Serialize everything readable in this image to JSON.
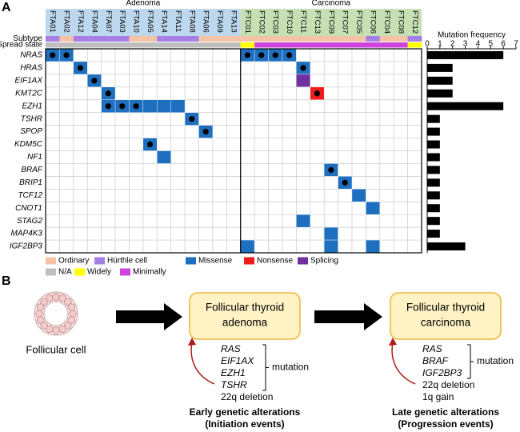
{
  "panel_labels": [
    "A",
    "B"
  ],
  "chart_data": [
    {
      "type": "oncoprint",
      "groups": [
        {
          "name": "Adenoma",
          "color": "#bdd7ee",
          "samples": [
            "FTA01",
            "FTA02",
            "FTA12",
            "FTA04",
            "FTA07",
            "FTA03",
            "FTA10",
            "FTA05",
            "FTA14",
            "FTA11",
            "FTA08",
            "FTA06",
            "FTA09",
            "FTA13"
          ]
        },
        {
          "name": "Carcinoma",
          "color": "#c6e0b4",
          "samples": [
            "FTC01",
            "FTC02",
            "FTC03",
            "FTC10",
            "FTC11",
            "FTC13",
            "FTC09",
            "FTC07",
            "FTC05",
            "FTC06",
            "FTC04",
            "FTC08",
            "FTC12"
          ]
        }
      ],
      "genes": [
        "NRAS",
        "HRAS",
        "EIF1AX",
        "KMT2C",
        "EZH1",
        "TSHR",
        "SPOP",
        "KDM5C",
        "NF1",
        "BRAF",
        "BRIP1",
        "TCF12",
        "CNOT1",
        "STAG2",
        "MAP4K3",
        "IGF2BP3"
      ],
      "annotation_rows": [
        "Subtype",
        "Spread state"
      ],
      "subtype": [
        "Hürthle cell",
        "Ordinary",
        "Hürthle cell",
        "Hürthle cell",
        "Hürthle cell",
        "Hürthle cell",
        "Ordinary",
        "Ordinary",
        "Hürthle cell",
        "Hürthle cell",
        "Hürthle cell",
        "Ordinary",
        "Ordinary",
        "Ordinary",
        "Ordinary",
        "Ordinary",
        "Ordinary",
        "Ordinary",
        "Ordinary",
        "Ordinary",
        "Ordinary",
        "Ordinary",
        "Ordinary",
        "Hürthle cell",
        "Ordinary",
        "Ordinary",
        "Hürthle cell"
      ],
      "spread_state": [
        "N/A",
        "N/A",
        "N/A",
        "N/A",
        "N/A",
        "N/A",
        "N/A",
        "N/A",
        "N/A",
        "N/A",
        "N/A",
        "N/A",
        "N/A",
        "N/A",
        "Widely",
        "Minimally",
        "Minimally",
        "Minimally",
        "Minimally",
        "Minimally",
        "Minimally",
        "Minimally",
        "Minimally",
        "Minimally",
        "Minimally",
        "Minimally",
        "Widely"
      ],
      "subtype_legend": [
        {
          "name": "Ordinary",
          "color": "#f4c3a6"
        },
        {
          "name": "Hürthle cell",
          "color": "#a57fe6"
        }
      ],
      "spread_legend": [
        {
          "name": "N/A",
          "color": "#bfbfbf"
        },
        {
          "name": "Widely",
          "color": "#ffff00"
        },
        {
          "name": "Minimally",
          "color": "#cc44dd"
        }
      ],
      "mutation_legend": [
        {
          "name": "Missense",
          "color": "#1f6fc0"
        },
        {
          "name": "Nonsense",
          "color": "#ee1c1c"
        },
        {
          "name": "Splicing",
          "color": "#7030a0"
        }
      ],
      "mutations": [
        {
          "gene": "NRAS",
          "sample": "FTA01",
          "type": "Missense",
          "dot": true
        },
        {
          "gene": "NRAS",
          "sample": "FTA02",
          "type": "Missense",
          "dot": true
        },
        {
          "gene": "NRAS",
          "sample": "FTC01",
          "type": "Missense",
          "dot": true
        },
        {
          "gene": "NRAS",
          "sample": "FTC02",
          "type": "Missense",
          "dot": true
        },
        {
          "gene": "NRAS",
          "sample": "FTC03",
          "type": "Missense",
          "dot": true
        },
        {
          "gene": "NRAS",
          "sample": "FTC10",
          "type": "Missense",
          "dot": true
        },
        {
          "gene": "HRAS",
          "sample": "FTA12",
          "type": "Missense",
          "dot": true
        },
        {
          "gene": "HRAS",
          "sample": "FTC11",
          "type": "Missense",
          "dot": true
        },
        {
          "gene": "EIF1AX",
          "sample": "FTA04",
          "type": "Missense",
          "dot": true
        },
        {
          "gene": "EIF1AX",
          "sample": "FTC11",
          "type": "Splicing",
          "dot": false
        },
        {
          "gene": "KMT2C",
          "sample": "FTA07",
          "type": "Missense",
          "dot": true
        },
        {
          "gene": "KMT2C",
          "sample": "FTC13",
          "type": "Nonsense",
          "dot": true
        },
        {
          "gene": "EZH1",
          "sample": "FTA07",
          "type": "Missense",
          "dot": true
        },
        {
          "gene": "EZH1",
          "sample": "FTA03",
          "type": "Missense",
          "dot": true
        },
        {
          "gene": "EZH1",
          "sample": "FTA10",
          "type": "Missense",
          "dot": true
        },
        {
          "gene": "EZH1",
          "sample": "FTA05",
          "type": "Missense",
          "dot": false
        },
        {
          "gene": "EZH1",
          "sample": "FTA14",
          "type": "Missense",
          "dot": false
        },
        {
          "gene": "EZH1",
          "sample": "FTA11",
          "type": "Missense",
          "dot": false
        },
        {
          "gene": "TSHR",
          "sample": "FTA08",
          "type": "Missense",
          "dot": true
        },
        {
          "gene": "SPOP",
          "sample": "FTA06",
          "type": "Missense",
          "dot": true
        },
        {
          "gene": "KDM5C",
          "sample": "FTA05",
          "type": "Missense",
          "dot": true
        },
        {
          "gene": "NF1",
          "sample": "FTA14",
          "type": "Missense",
          "dot": false
        },
        {
          "gene": "BRAF",
          "sample": "FTC09",
          "type": "Missense",
          "dot": true
        },
        {
          "gene": "BRIP1",
          "sample": "FTC07",
          "type": "Missense",
          "dot": true
        },
        {
          "gene": "TCF12",
          "sample": "FTC05",
          "type": "Missense",
          "dot": false
        },
        {
          "gene": "CNOT1",
          "sample": "FTC06",
          "type": "Missense",
          "dot": false
        },
        {
          "gene": "STAG2",
          "sample": "FTC11",
          "type": "Missense",
          "dot": false
        },
        {
          "gene": "MAP4K3",
          "sample": "FTC09",
          "type": "Missense",
          "dot": false
        },
        {
          "gene": "IGF2BP3",
          "sample": "FTC01",
          "type": "Missense",
          "dot": false
        },
        {
          "gene": "IGF2BP3",
          "sample": "FTC09",
          "type": "Missense",
          "dot": false
        },
        {
          "gene": "IGF2BP3",
          "sample": "FTC06",
          "type": "Missense",
          "dot": false
        }
      ]
    },
    {
      "type": "bar",
      "orientation": "horizontal",
      "title": "Mutation frequency",
      "values": [
        6,
        2,
        2,
        2,
        6,
        1,
        1,
        1,
        1,
        1,
        1,
        1,
        1,
        1,
        1,
        3
      ],
      "color": "#000000",
      "xlim": [
        0,
        7
      ],
      "xticks": [
        0,
        1,
        2,
        3,
        4,
        5,
        6,
        7
      ]
    }
  ],
  "panel_b": {
    "cell_label": "Follicular cell",
    "stages": [
      {
        "title_lines": [
          "Follicular thyroid",
          "adenoma"
        ],
        "mutations": [
          "RAS",
          "EIF1AX",
          "EZH1",
          "TSHR"
        ],
        "mutation_label": "mutation",
        "other": [
          "22q deletion"
        ],
        "caption_lines": [
          "Early genetic alterations",
          "(Initiation events)"
        ]
      },
      {
        "title_lines": [
          "Follicular thyroid",
          "carcinoma"
        ],
        "mutations": [
          "RAS",
          "BRAF",
          "IGF2BP3"
        ],
        "mutation_label": "mutation",
        "other": [
          "22q deletion",
          "1q gain"
        ],
        "caption_lines": [
          "Late genetic alterations",
          "(Progression events)"
        ]
      }
    ]
  }
}
